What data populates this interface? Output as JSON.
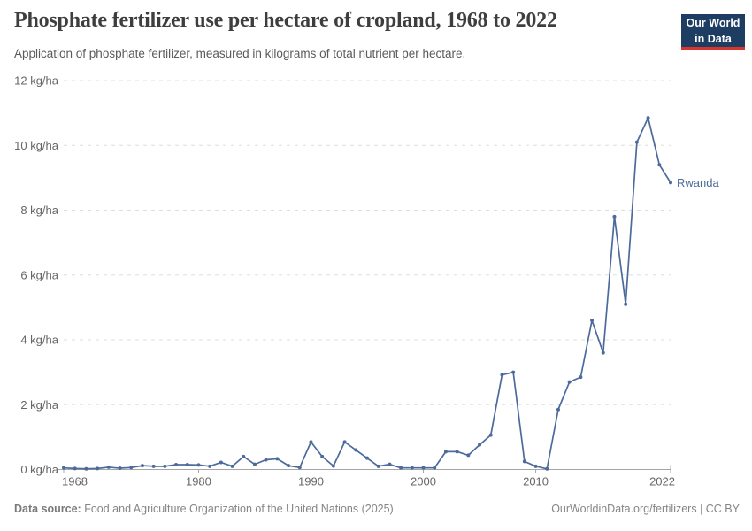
{
  "header": {
    "title": "Phosphate fertilizer use per hectare of cropland, 1968 to 2022",
    "subtitle": "Application of phosphate fertilizer, measured in kilograms of total nutrient per hectare.",
    "logo": {
      "line1": "Our World",
      "line2": "in Data",
      "bg_color": "#1d3d63",
      "bar_color": "#d6362c"
    }
  },
  "chart_data": {
    "type": "line",
    "title": "Phosphate fertilizer use per hectare of cropland, 1968 to 2022",
    "xlabel": "",
    "ylabel": "kg/ha",
    "xlim": [
      1968,
      2022
    ],
    "ylim": [
      0,
      12
    ],
    "grid": "horizontal-dashed",
    "legend_position": "end-of-line",
    "x_ticks": [
      1968,
      1980,
      1990,
      2000,
      2010,
      2022
    ],
    "y_ticks": [
      {
        "value": 0,
        "label": "0 kg/ha"
      },
      {
        "value": 2,
        "label": "2 kg/ha"
      },
      {
        "value": 4,
        "label": "4 kg/ha"
      },
      {
        "value": 6,
        "label": "6 kg/ha"
      },
      {
        "value": 8,
        "label": "8 kg/ha"
      },
      {
        "value": 10,
        "label": "10 kg/ha"
      },
      {
        "value": 12,
        "label": "12 kg/ha"
      }
    ],
    "series": [
      {
        "name": "Rwanda",
        "color": "#4c6a9c",
        "x": [
          1968,
          1969,
          1970,
          1971,
          1972,
          1973,
          1974,
          1975,
          1976,
          1977,
          1978,
          1979,
          1980,
          1981,
          1982,
          1983,
          1984,
          1985,
          1986,
          1987,
          1988,
          1989,
          1990,
          1991,
          1992,
          1993,
          1994,
          1995,
          1996,
          1997,
          1998,
          1999,
          2000,
          2001,
          2002,
          2003,
          2004,
          2005,
          2006,
          2007,
          2008,
          2009,
          2010,
          2011,
          2012,
          2013,
          2014,
          2015,
          2016,
          2017,
          2018,
          2019,
          2020,
          2021,
          2022
        ],
        "values": [
          0.05,
          0.03,
          0.02,
          0.03,
          0.07,
          0.04,
          0.06,
          0.12,
          0.1,
          0.1,
          0.15,
          0.15,
          0.14,
          0.1,
          0.22,
          0.1,
          0.4,
          0.16,
          0.3,
          0.33,
          0.12,
          0.06,
          0.85,
          0.4,
          0.11,
          0.85,
          0.6,
          0.35,
          0.1,
          0.16,
          0.05,
          0.05,
          0.05,
          0.05,
          0.55,
          0.55,
          0.44,
          0.76,
          1.06,
          2.92,
          3.0,
          0.25,
          0.1,
          0.02,
          1.85,
          2.7,
          2.85,
          4.6,
          3.6,
          7.8,
          5.1,
          10.1,
          10.85,
          9.4,
          8.85
        ]
      }
    ]
  },
  "footer": {
    "source_label": "Data source:",
    "source_text": " Food and Agriculture Organization of the United Nations (2025)",
    "credit": "OurWorldinData.org/fertilizers | CC BY"
  },
  "colors": {
    "line": "#4c6a9c",
    "grid": "#dddddd",
    "axis": "#a5a5a5",
    "tick_label": "#666666",
    "title": "#3e3e3e",
    "subtitle": "#5b5b5b",
    "footer": "#858585"
  }
}
